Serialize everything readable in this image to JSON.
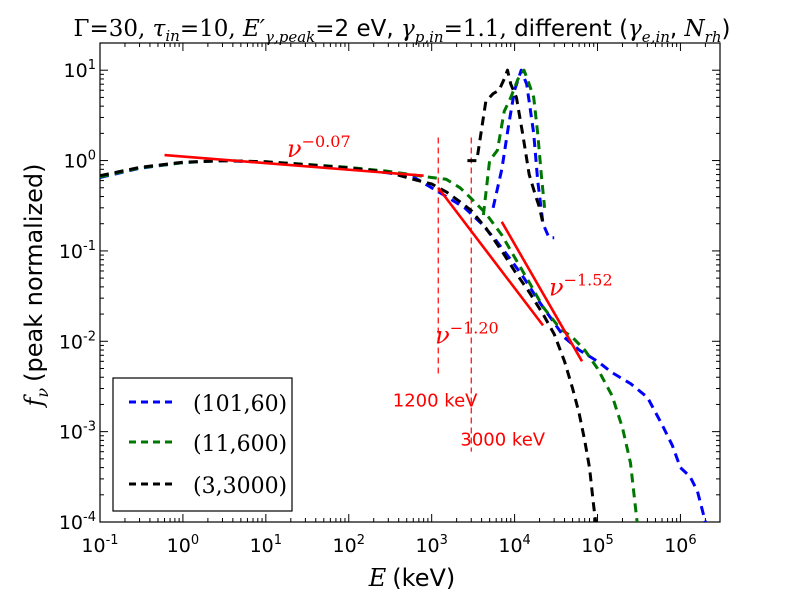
{
  "chart_data": {
    "type": "line",
    "title_parts": {
      "gamma_sym": "Γ",
      "gamma_val": "=30,",
      "tau_sym": "τ",
      "tau_sub": "in",
      "tau_val": "=10,",
      "e_sym": "E′",
      "e_sub": "γ,peak",
      "e_val": "=2 eV,",
      "gp_sym": "γ",
      "gp_sub": "p,in",
      "gp_val": "=1.1,",
      "diff": "different (",
      "ge_sym": "γ",
      "ge_sub": "e,in",
      "comma": ",",
      "n_sym": "N",
      "n_sub": "rh",
      "close": ")"
    },
    "xlabel": {
      "sym": "E",
      "unit": "(keV)"
    },
    "ylabel": {
      "sym": "f",
      "sub": "ν",
      "text": "(peak normalized)"
    },
    "x_scale": "log",
    "y_scale": "log",
    "xlim": [
      0.1,
      3000000
    ],
    "ylim": [
      0.0001,
      20
    ],
    "x_ticks": [
      {
        "value": 0.1,
        "base": "10",
        "exp": "-1"
      },
      {
        "value": 1,
        "base": "10",
        "exp": "0"
      },
      {
        "value": 10,
        "base": "10",
        "exp": "1"
      },
      {
        "value": 100,
        "base": "10",
        "exp": "2"
      },
      {
        "value": 1000,
        "base": "10",
        "exp": "3"
      },
      {
        "value": 10000,
        "base": "10",
        "exp": "4"
      },
      {
        "value": 100000,
        "base": "10",
        "exp": "5"
      },
      {
        "value": 1000000,
        "base": "10",
        "exp": "6"
      }
    ],
    "y_ticks": [
      {
        "value": 0.0001,
        "base": "10",
        "exp": "-4"
      },
      {
        "value": 0.001,
        "base": "10",
        "exp": "-3"
      },
      {
        "value": 0.01,
        "base": "10",
        "exp": "-2"
      },
      {
        "value": 0.1,
        "base": "10",
        "exp": "-1"
      },
      {
        "value": 1,
        "base": "10",
        "exp": "0"
      },
      {
        "value": 10,
        "base": "10",
        "exp": "1"
      }
    ],
    "series": [
      {
        "name": "(101,60)",
        "color": "#0000ff",
        "points": [
          [
            0.1,
            0.65
          ],
          [
            0.3,
            0.82
          ],
          [
            1,
            0.95
          ],
          [
            3,
            1.0
          ],
          [
            10,
            0.96
          ],
          [
            30,
            0.9
          ],
          [
            100,
            0.82
          ],
          [
            300,
            0.73
          ],
          [
            600,
            0.66
          ],
          [
            1000,
            0.5
          ],
          [
            1500,
            0.4
          ],
          [
            2500,
            0.3
          ],
          [
            4000,
            0.2
          ],
          [
            6000,
            0.13
          ],
          [
            9000,
            0.08
          ],
          [
            13000,
            0.05
          ],
          [
            20000,
            0.027
          ],
          [
            30000,
            0.016
          ],
          [
            40000,
            0.011
          ],
          [
            60000,
            0.008
          ],
          [
            100000,
            0.006
          ],
          [
            150000,
            0.0045
          ],
          [
            250000,
            0.0034
          ],
          [
            400000,
            0.0024
          ],
          [
            600000,
            0.0012
          ],
          [
            800000,
            0.0007
          ],
          [
            1000000,
            0.0004
          ],
          [
            1300000,
            0.00032
          ],
          [
            1600000,
            0.00022
          ],
          [
            2000000,
            0.0001
          ]
        ]
      },
      {
        "name": "(101,60)",
        "color": "#0000ff",
        "points": [
          [
            5500,
            0.3
          ],
          [
            7000,
            0.8
          ],
          [
            8500,
            2.5
          ],
          [
            10000,
            6
          ],
          [
            12000,
            10
          ],
          [
            14000,
            7
          ],
          [
            17000,
            2
          ],
          [
            19000,
            0.6
          ],
          [
            22000,
            0.2
          ],
          [
            26000,
            0.14
          ],
          [
            30000,
            0.14
          ]
        ]
      },
      {
        "name": "(11,600)",
        "color": "#007700",
        "points": [
          [
            0.1,
            0.66
          ],
          [
            0.3,
            0.83
          ],
          [
            1,
            0.95
          ],
          [
            3,
            1.0
          ],
          [
            10,
            0.97
          ],
          [
            30,
            0.91
          ],
          [
            100,
            0.84
          ],
          [
            300,
            0.76
          ],
          [
            700,
            0.68
          ],
          [
            1000,
            0.65
          ],
          [
            1500,
            0.62
          ],
          [
            2200,
            0.5
          ],
          [
            3000,
            0.38
          ],
          [
            4500,
            0.26
          ],
          [
            7000,
            0.15
          ],
          [
            10000,
            0.085
          ],
          [
            15000,
            0.045
          ],
          [
            22000,
            0.024
          ],
          [
            35000,
            0.014
          ],
          [
            50000,
            0.011
          ],
          [
            70000,
            0.008
          ],
          [
            100000,
            0.005
          ],
          [
            150000,
            0.0025
          ],
          [
            200000,
            0.0011
          ],
          [
            250000,
            0.00045
          ],
          [
            300000,
            0.0001
          ]
        ]
      },
      {
        "name": "(11,600)",
        "color": "#007700",
        "points": [
          [
            4200,
            0.25
          ],
          [
            5000,
            1.0
          ],
          [
            6200,
            1.3
          ],
          [
            7500,
            3.5
          ],
          [
            9000,
            5
          ],
          [
            11000,
            8
          ],
          [
            13000,
            10
          ],
          [
            15000,
            7
          ],
          [
            17000,
            5
          ],
          [
            19000,
            2
          ],
          [
            21000,
            0.7
          ],
          [
            23000,
            0.3
          ]
        ]
      },
      {
        "name": "(3,3000)",
        "color": "#000000",
        "points": [
          [
            0.1,
            0.68
          ],
          [
            0.3,
            0.84
          ],
          [
            1,
            0.96
          ],
          [
            3,
            1.0
          ],
          [
            10,
            0.97
          ],
          [
            30,
            0.9
          ],
          [
            100,
            0.83
          ],
          [
            300,
            0.74
          ],
          [
            600,
            0.62
          ],
          [
            1000,
            0.55
          ],
          [
            1500,
            0.45
          ],
          [
            2200,
            0.35
          ],
          [
            3000,
            0.28
          ],
          [
            4500,
            0.18
          ],
          [
            7000,
            0.1
          ],
          [
            10000,
            0.06
          ],
          [
            15000,
            0.035
          ],
          [
            22000,
            0.02
          ],
          [
            30000,
            0.012
          ],
          [
            40000,
            0.006
          ],
          [
            50000,
            0.003
          ],
          [
            60000,
            0.0016
          ],
          [
            70000,
            0.0008
          ],
          [
            80000,
            0.0004
          ],
          [
            90000,
            0.00015
          ],
          [
            95000,
            0.0001
          ]
        ]
      },
      {
        "name": "(3,3000)",
        "color": "#000000",
        "points": [
          [
            2700,
            1.0
          ],
          [
            3500,
            1.0
          ],
          [
            4500,
            4.5
          ],
          [
            5500,
            5.5
          ],
          [
            6500,
            6
          ],
          [
            7500,
            8
          ],
          [
            8200,
            10
          ],
          [
            9000,
            7
          ],
          [
            10500,
            5
          ],
          [
            12500,
            2
          ],
          [
            15000,
            0.7
          ],
          [
            18000,
            0.4
          ],
          [
            20000,
            0.3
          ],
          [
            22000,
            0.2
          ]
        ]
      }
    ],
    "fit_lines": [
      {
        "from": [
          0.6,
          1.15
        ],
        "to": [
          800,
          0.68
        ],
        "label_base": "ν",
        "label_exp": "−0.07",
        "label_pos": [
          18,
          1.1
        ]
      },
      {
        "from": [
          1200,
          0.5
        ],
        "to": [
          22000,
          0.015
        ],
        "label_base": "ν",
        "label_exp": "−1.20",
        "label_pos": [
          1100,
          0.0095
        ]
      },
      {
        "from": [
          7000,
          0.21
        ],
        "to": [
          65000,
          0.006
        ],
        "label_base": "ν",
        "label_exp": "−1.52",
        "label_pos": [
          26000,
          0.032
        ]
      }
    ],
    "vlines": [
      {
        "x": 1200,
        "y_from": 0.004,
        "y_to": 1.8,
        "label": "1200 keV",
        "label_pos": [
          1100,
          0.0019
        ]
      },
      {
        "x": 3000,
        "y_from": 0.0006,
        "y_to": 1.8,
        "label": "3000 keV",
        "label_pos": [
          7200,
          0.0007
        ]
      }
    ],
    "legend": {
      "position": "lower-left",
      "entries": [
        {
          "label": "(101,60)",
          "color": "#0000ff"
        },
        {
          "label": "(11,600)",
          "color": "#007700"
        },
        {
          "label": "(3,3000)",
          "color": "#000000"
        }
      ]
    },
    "annotation_color": "#ff0000"
  }
}
